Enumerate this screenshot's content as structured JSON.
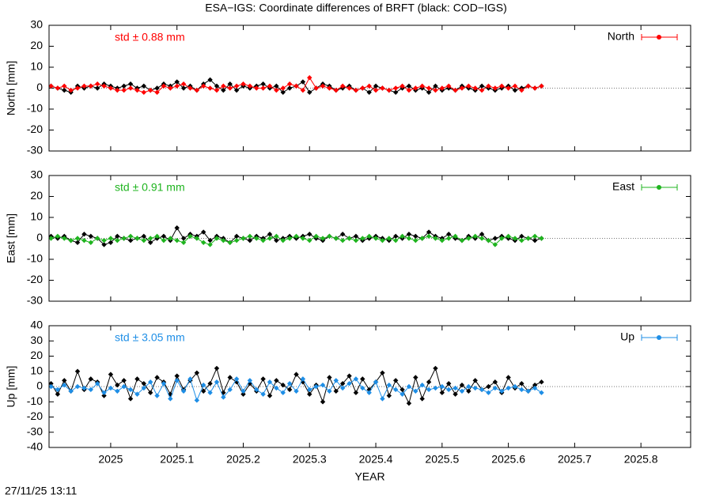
{
  "title": "ESA−IGS: Coordinate differences of BRFT (black: COD−IGS)",
  "timestamp": "27/11/25 13:11",
  "chart_data": [
    {
      "type": "line",
      "ylabel": "North [mm]",
      "annotation": "std ± 0.88 mm",
      "annotation_color": "#ff0000",
      "xlim": [
        2024.907,
        2025.875
      ],
      "ylim": [
        -30,
        30
      ],
      "yticks": [
        -30,
        -20,
        -10,
        0,
        10,
        20,
        30
      ],
      "x": [
        2024.91,
        2024.92,
        2024.93,
        2024.94,
        2024.95,
        2024.96,
        2024.97,
        2024.98,
        2024.99,
        2025.0,
        2025.01,
        2025.02,
        2025.03,
        2025.04,
        2025.05,
        2025.06,
        2025.07,
        2025.08,
        2025.09,
        2025.1,
        2025.11,
        2025.12,
        2025.13,
        2025.14,
        2025.15,
        2025.16,
        2025.17,
        2025.18,
        2025.19,
        2025.2,
        2025.21,
        2025.22,
        2025.23,
        2025.24,
        2025.25,
        2025.26,
        2025.27,
        2025.28,
        2025.29,
        2025.3,
        2025.31,
        2025.32,
        2025.33,
        2025.34,
        2025.35,
        2025.36,
        2025.37,
        2025.38,
        2025.39,
        2025.4,
        2025.41,
        2025.42,
        2025.43,
        2025.44,
        2025.45,
        2025.46,
        2025.47,
        2025.48,
        2025.49,
        2025.5,
        2025.51,
        2025.52,
        2025.53,
        2025.54,
        2025.55,
        2025.56,
        2025.57,
        2025.58,
        2025.59,
        2025.6,
        2025.61,
        2025.62,
        2025.63,
        2025.64,
        2025.65
      ],
      "series": [
        {
          "color": "#000000",
          "values": [
            1,
            0,
            -1,
            -2,
            1,
            0,
            1,
            0,
            2,
            1,
            0,
            1,
            2,
            0,
            1,
            -1,
            0,
            2,
            1,
            3,
            0,
            1,
            -1,
            2,
            4,
            1,
            -1,
            2,
            -1,
            1,
            0,
            1,
            2,
            0,
            1,
            -2,
            0,
            1,
            3,
            -2,
            0,
            2,
            1,
            -1,
            0,
            1,
            -1,
            0,
            -2,
            1,
            0,
            -1,
            -2,
            0,
            1,
            -1,
            0,
            -2,
            1,
            -1,
            0,
            -1,
            1,
            0,
            -1,
            1,
            0,
            -1,
            0,
            1,
            -1,
            0,
            1,
            0,
            1
          ]
        },
        {
          "name": "North",
          "color": "#ff0000",
          "values": [
            1,
            0,
            1,
            -1,
            0,
            1,
            1,
            2,
            1,
            0,
            -1,
            -1,
            0,
            -1,
            -2,
            -1,
            -2,
            1,
            0,
            1,
            2,
            0,
            -1,
            1,
            0,
            -1,
            1,
            0,
            1,
            2,
            1,
            0,
            0,
            1,
            -1,
            0,
            2,
            1,
            -1,
            5,
            0,
            1,
            0,
            -1,
            1,
            0,
            -1,
            0,
            1,
            -1,
            0,
            -1,
            0,
            1,
            -1,
            0,
            1,
            0,
            -1,
            0,
            1,
            -1,
            0,
            1,
            0,
            -1,
            1,
            0,
            1,
            0,
            1,
            -1,
            1,
            0,
            1
          ]
        }
      ]
    },
    {
      "type": "line",
      "ylabel": "East [mm]",
      "annotation": "std ± 0.91 mm",
      "annotation_color": "#1fb41f",
      "xlim": [
        2024.907,
        2025.875
      ],
      "ylim": [
        -30,
        30
      ],
      "yticks": [
        -30,
        -20,
        -10,
        0,
        10,
        20,
        30
      ],
      "x": [
        2024.91,
        2024.92,
        2024.93,
        2024.94,
        2024.95,
        2024.96,
        2024.97,
        2024.98,
        2024.99,
        2025.0,
        2025.01,
        2025.02,
        2025.03,
        2025.04,
        2025.05,
        2025.06,
        2025.07,
        2025.08,
        2025.09,
        2025.1,
        2025.11,
        2025.12,
        2025.13,
        2025.14,
        2025.15,
        2025.16,
        2025.17,
        2025.18,
        2025.19,
        2025.2,
        2025.21,
        2025.22,
        2025.23,
        2025.24,
        2025.25,
        2025.26,
        2025.27,
        2025.28,
        2025.29,
        2025.3,
        2025.31,
        2025.32,
        2025.33,
        2025.34,
        2025.35,
        2025.36,
        2025.37,
        2025.38,
        2025.39,
        2025.4,
        2025.41,
        2025.42,
        2025.43,
        2025.44,
        2025.45,
        2025.46,
        2025.47,
        2025.48,
        2025.49,
        2025.5,
        2025.51,
        2025.52,
        2025.53,
        2025.54,
        2025.55,
        2025.56,
        2025.57,
        2025.58,
        2025.59,
        2025.6,
        2025.61,
        2025.62,
        2025.63,
        2025.64,
        2025.65
      ],
      "series": [
        {
          "color": "#000000",
          "values": [
            1,
            0,
            1,
            -1,
            -2,
            2,
            1,
            0,
            -3,
            -2,
            1,
            0,
            -1,
            0,
            1,
            -2,
            0,
            1,
            -1,
            5,
            0,
            2,
            1,
            3,
            -1,
            1,
            0,
            -2,
            1,
            0,
            -1,
            1,
            0,
            2,
            -1,
            0,
            1,
            0,
            1,
            2,
            0,
            -1,
            1,
            0,
            2,
            0,
            1,
            -1,
            0,
            1,
            0,
            -1,
            1,
            0,
            2,
            1,
            0,
            3,
            1,
            0,
            2,
            0,
            -1,
            1,
            0,
            2,
            -1,
            0,
            1,
            0,
            -1,
            1,
            0,
            -1,
            0
          ]
        },
        {
          "name": "East",
          "color": "#1fb41f",
          "values": [
            0,
            1,
            0,
            -1,
            0,
            -1,
            -2,
            0,
            -1,
            0,
            -1,
            0,
            1,
            0,
            -1,
            0,
            1,
            -1,
            0,
            -1,
            -2,
            1,
            0,
            -2,
            -3,
            0,
            -1,
            -2,
            -1,
            0,
            1,
            0,
            -1,
            0,
            1,
            -1,
            0,
            1,
            0,
            -1,
            1,
            0,
            1,
            0,
            -1,
            0,
            -1,
            0,
            1,
            0,
            -1,
            0,
            -1,
            1,
            0,
            -1,
            0,
            1,
            0,
            -1,
            0,
            1,
            -1,
            0,
            1,
            0,
            -1,
            -3,
            0,
            1,
            0,
            -1,
            0,
            1,
            0
          ]
        }
      ]
    },
    {
      "type": "line",
      "ylabel": "Up [mm]",
      "annotation": "std ± 3.05 mm",
      "annotation_color": "#1e8ee6",
      "xlabel": "YEAR",
      "xlim": [
        2024.907,
        2025.875
      ],
      "ylim": [
        -40,
        40
      ],
      "yticks": [
        -40,
        -30,
        -20,
        -10,
        0,
        10,
        20,
        30,
        40
      ],
      "xticks": [
        2025,
        2025.1,
        2025.2,
        2025.3,
        2025.4,
        2025.5,
        2025.6,
        2025.7,
        2025.8
      ],
      "x": [
        2024.91,
        2024.92,
        2024.93,
        2024.94,
        2024.95,
        2024.96,
        2024.97,
        2024.98,
        2024.99,
        2025.0,
        2025.01,
        2025.02,
        2025.03,
        2025.04,
        2025.05,
        2025.06,
        2025.07,
        2025.08,
        2025.09,
        2025.1,
        2025.11,
        2025.12,
        2025.13,
        2025.14,
        2025.15,
        2025.16,
        2025.17,
        2025.18,
        2025.19,
        2025.2,
        2025.21,
        2025.22,
        2025.23,
        2025.24,
        2025.25,
        2025.26,
        2025.27,
        2025.28,
        2025.29,
        2025.3,
        2025.31,
        2025.32,
        2025.33,
        2025.34,
        2025.35,
        2025.36,
        2025.37,
        2025.38,
        2025.39,
        2025.4,
        2025.41,
        2025.42,
        2025.43,
        2025.44,
        2025.45,
        2025.46,
        2025.47,
        2025.48,
        2025.49,
        2025.5,
        2025.51,
        2025.52,
        2025.53,
        2025.54,
        2025.55,
        2025.56,
        2025.57,
        2025.58,
        2025.59,
        2025.6,
        2025.61,
        2025.62,
        2025.63,
        2025.64,
        2025.65
      ],
      "series": [
        {
          "color": "#000000",
          "values": [
            2,
            -5,
            4,
            -3,
            10,
            -2,
            5,
            3,
            -6,
            8,
            1,
            4,
            -8,
            5,
            2,
            -4,
            6,
            3,
            -5,
            7,
            -2,
            4,
            9,
            -3,
            2,
            12,
            -4,
            6,
            3,
            -5,
            2,
            -3,
            5,
            -6,
            4,
            1,
            -2,
            8,
            3,
            -5,
            1,
            -10,
            6,
            -3,
            2,
            7,
            -4,
            5,
            -2,
            3,
            9,
            -6,
            4,
            -2,
            -11,
            6,
            -8,
            3,
            12,
            -4,
            2,
            -5,
            1,
            -3,
            4,
            -2,
            0,
            3,
            -4,
            6,
            -1,
            2,
            -3,
            1,
            3
          ]
        },
        {
          "name": "Up",
          "color": "#1e8ee6",
          "values": [
            0,
            -2,
            1,
            -3,
            0,
            -1,
            -2,
            2,
            -4,
            -1,
            -3,
            0,
            -2,
            -5,
            -1,
            3,
            -6,
            2,
            -8,
            4,
            -3,
            5,
            -9,
            1,
            -4,
            3,
            -7,
            -2,
            5,
            -3,
            4,
            -2,
            -5,
            3,
            -1,
            -4,
            2,
            -3,
            5,
            -2,
            0,
            1,
            -3,
            4,
            -1,
            2,
            5,
            -1,
            -4,
            3,
            -8,
            1,
            -2,
            -5,
            0,
            -3,
            1,
            -2,
            -1,
            0,
            -2,
            -1,
            -3,
            0,
            -1,
            -2,
            -4,
            -1,
            -3,
            -1,
            0,
            -2,
            -3,
            -1,
            -4
          ]
        }
      ]
    }
  ]
}
